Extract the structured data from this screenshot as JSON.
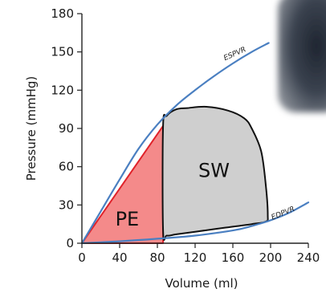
{
  "chart_data": {
    "type": "line",
    "xlabel": "Volume (ml)",
    "ylabel": "Pressure (mmHg)",
    "xlim": [
      0,
      240
    ],
    "ylim": [
      0,
      180
    ],
    "xticks": [
      "0",
      "40",
      "80",
      "120",
      "160",
      "200",
      "240"
    ],
    "yticks": [
      "0",
      "30",
      "60",
      "90",
      "120",
      "150",
      "180"
    ],
    "grid": false,
    "series": [
      {
        "name": "ESPVR",
        "color": "#4a7fc1",
        "x": [
          0,
          20,
          40,
          60,
          80,
          100,
          120,
          140,
          160,
          180,
          198
        ],
        "y": [
          0,
          25,
          50,
          74,
          93,
          108,
          120,
          131,
          141,
          150,
          157
        ]
      },
      {
        "name": "EDPVR",
        "color": "#4a7fc1",
        "x": [
          0,
          40,
          80,
          120,
          160,
          180,
          200,
          220,
          240
        ],
        "y": [
          0,
          1.5,
          3.5,
          6,
          10,
          13.5,
          18,
          24,
          32
        ]
      }
    ],
    "regions": [
      {
        "name": "PE",
        "fill": "#f48a8a",
        "stroke": "#e0222a",
        "x": [
          0,
          86,
          86
        ],
        "y": [
          0,
          92,
          0
        ]
      },
      {
        "name": "SW",
        "fill": "#cfcfcf",
        "stroke": "#111111",
        "x": [
          86,
          86,
          90,
          100,
          112,
          132,
          155,
          172,
          180,
          190,
          195,
          197,
          195,
          180,
          150,
          120,
          100,
          90,
          86
        ],
        "y": [
          10,
          92,
          100,
          105,
          106,
          107,
          104,
          98,
          90,
          72,
          45,
          22,
          17,
          15,
          12,
          9,
          7,
          6,
          10
        ]
      }
    ]
  }
}
